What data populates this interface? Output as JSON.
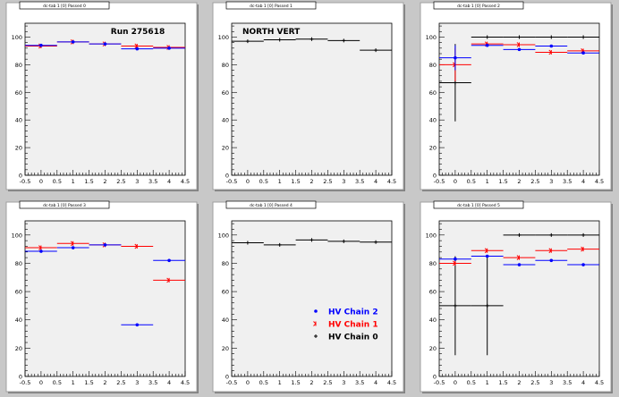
{
  "colors": {
    "chain2": "#0000ff",
    "chain1": "#ff0000",
    "chain0": "#000000",
    "canvas_bg": "#c8c8c8",
    "frame_bg": "#ffffff",
    "plot_bg": "#f0f0f0"
  },
  "chart_data": [
    {
      "type": "scatter",
      "tab": "dc-tab 1 [0] Passed 0",
      "title": "Run 275618",
      "xlim": [
        -0.5,
        4.5
      ],
      "ylim": [
        0,
        110
      ],
      "xticks": [
        "-0.5",
        "0",
        "0.5",
        "1",
        "1.5",
        "2",
        "2.5",
        "3",
        "3.5",
        "4",
        "4.5"
      ],
      "yticks": [
        "0",
        "20",
        "40",
        "60",
        "80",
        "100"
      ],
      "series": [
        {
          "key": "chain1",
          "x": [
            0,
            1,
            2,
            3,
            4
          ],
          "y": [
            93.5,
            96.5,
            95,
            93.5,
            92.5
          ],
          "yerr": [
            0,
            0,
            0,
            0,
            0
          ]
        },
        {
          "key": "chain2",
          "x": [
            0,
            1,
            2,
            3,
            4
          ],
          "y": [
            94,
            96.5,
            95,
            91.5,
            92
          ],
          "yerr": [
            0,
            0,
            0,
            0,
            0
          ]
        }
      ]
    },
    {
      "type": "scatter",
      "tab": "dc-tab 1 [0] Passed 1",
      "title": "NORTH VERT",
      "xlim": [
        -0.5,
        4.5
      ],
      "ylim": [
        0,
        110
      ],
      "xticks": [
        "-0.5",
        "0",
        "0.5",
        "1",
        "1.5",
        "2",
        "2.5",
        "3",
        "3.5",
        "4",
        "4.5"
      ],
      "yticks": [
        "0",
        "20",
        "40",
        "60",
        "80",
        "100"
      ],
      "series": [
        {
          "key": "chain0",
          "x": [
            0,
            1,
            2,
            3,
            4
          ],
          "y": [
            97,
            98,
            98.5,
            97.5,
            90.5
          ],
          "yerr": [
            0,
            0,
            0,
            0,
            0
          ]
        }
      ]
    },
    {
      "type": "scatter",
      "tab": "dc-tab 1 [0] Passed 2",
      "title": "",
      "xlim": [
        -0.5,
        4.5
      ],
      "ylim": [
        0,
        110
      ],
      "xticks": [
        "-0.5",
        "0",
        "0.5",
        "1",
        "1.5",
        "2",
        "2.5",
        "3",
        "3.5",
        "4",
        "4.5"
      ],
      "yticks": [
        "0",
        "20",
        "40",
        "60",
        "80",
        "100"
      ],
      "series": [
        {
          "key": "chain0",
          "x": [
            0,
            1,
            2,
            3,
            4
          ],
          "y": [
            67,
            100,
            100,
            100,
            100
          ],
          "yerr": [
            28,
            0,
            0,
            0,
            0
          ]
        },
        {
          "key": "chain1",
          "x": [
            0,
            1,
            2,
            3,
            4
          ],
          "y": [
            80,
            95,
            94.5,
            89,
            90
          ],
          "yerr": [
            12,
            0,
            0,
            0,
            0
          ]
        },
        {
          "key": "chain2",
          "x": [
            0,
            1,
            2,
            3,
            4
          ],
          "y": [
            85,
            94,
            91,
            93.5,
            88.5
          ],
          "yerr": [
            9,
            0,
            0,
            0,
            0
          ]
        }
      ]
    },
    {
      "type": "scatter",
      "tab": "dc-tab 1 [0] Passed 3",
      "title": "",
      "xlim": [
        -0.5,
        4.5
      ],
      "ylim": [
        0,
        110
      ],
      "xticks": [
        "-0.5",
        "0",
        "0.5",
        "1",
        "1.5",
        "2",
        "2.5",
        "3",
        "3.5",
        "4",
        "4.5"
      ],
      "yticks": [
        "0",
        "20",
        "40",
        "60",
        "80",
        "100"
      ],
      "series": [
        {
          "key": "chain1",
          "x": [
            0,
            1,
            2,
            3,
            4
          ],
          "y": [
            91,
            94,
            93,
            92,
            68
          ],
          "yerr": [
            0,
            0,
            0,
            0,
            0
          ]
        },
        {
          "key": "chain2",
          "x": [
            0,
            1,
            2,
            3,
            4
          ],
          "y": [
            88.5,
            91,
            93,
            36.5,
            82
          ],
          "yerr": [
            0,
            0,
            0,
            0,
            0
          ]
        }
      ]
    },
    {
      "type": "scatter",
      "tab": "dc-tab 1 [0] Passed 4",
      "title": "",
      "xlim": [
        -0.5,
        4.5
      ],
      "ylim": [
        0,
        110
      ],
      "xticks": [
        "-0.5",
        "0",
        "0.5",
        "1",
        "1.5",
        "2",
        "2.5",
        "3",
        "3.5",
        "4",
        "4.5"
      ],
      "yticks": [
        "0",
        "20",
        "40",
        "60",
        "80",
        "100"
      ],
      "series": [
        {
          "key": "chain0",
          "x": [
            0,
            1,
            2,
            3,
            4
          ],
          "y": [
            94.5,
            93,
            96.5,
            95.5,
            95
          ],
          "yerr": [
            0,
            0,
            0,
            0,
            0
          ]
        }
      ],
      "legend": {
        "placement": "bottom-right",
        "entries": [
          {
            "key": "chain2",
            "label": "HV Chain 2"
          },
          {
            "key": "chain1",
            "label": "HV Chain 1"
          },
          {
            "key": "chain0",
            "label": "HV Chain 0"
          }
        ]
      }
    },
    {
      "type": "scatter",
      "tab": "dc-tab 1 [0] Passed 5",
      "title": "",
      "xlim": [
        -0.5,
        4.5
      ],
      "ylim": [
        0,
        110
      ],
      "xticks": [
        "-0.5",
        "0",
        "0.5",
        "1",
        "1.5",
        "2",
        "2.5",
        "3",
        "3.5",
        "4",
        "4.5"
      ],
      "yticks": [
        "0",
        "20",
        "40",
        "60",
        "80",
        "100"
      ],
      "series": [
        {
          "key": "chain0",
          "x": [
            0,
            1,
            2,
            3,
            4
          ],
          "y": [
            50,
            50,
            100,
            100,
            100
          ],
          "yerr": [
            35,
            35,
            0,
            0,
            0
          ]
        },
        {
          "key": "chain1",
          "x": [
            0,
            1,
            2,
            3,
            4
          ],
          "y": [
            80,
            89,
            84,
            89,
            90
          ],
          "yerr": [
            0,
            0,
            0,
            0,
            0
          ]
        },
        {
          "key": "chain2",
          "x": [
            0,
            1,
            2,
            3,
            4
          ],
          "y": [
            83,
            85,
            79,
            82,
            79
          ],
          "yerr": [
            0,
            0,
            0,
            0,
            0
          ]
        }
      ]
    }
  ]
}
